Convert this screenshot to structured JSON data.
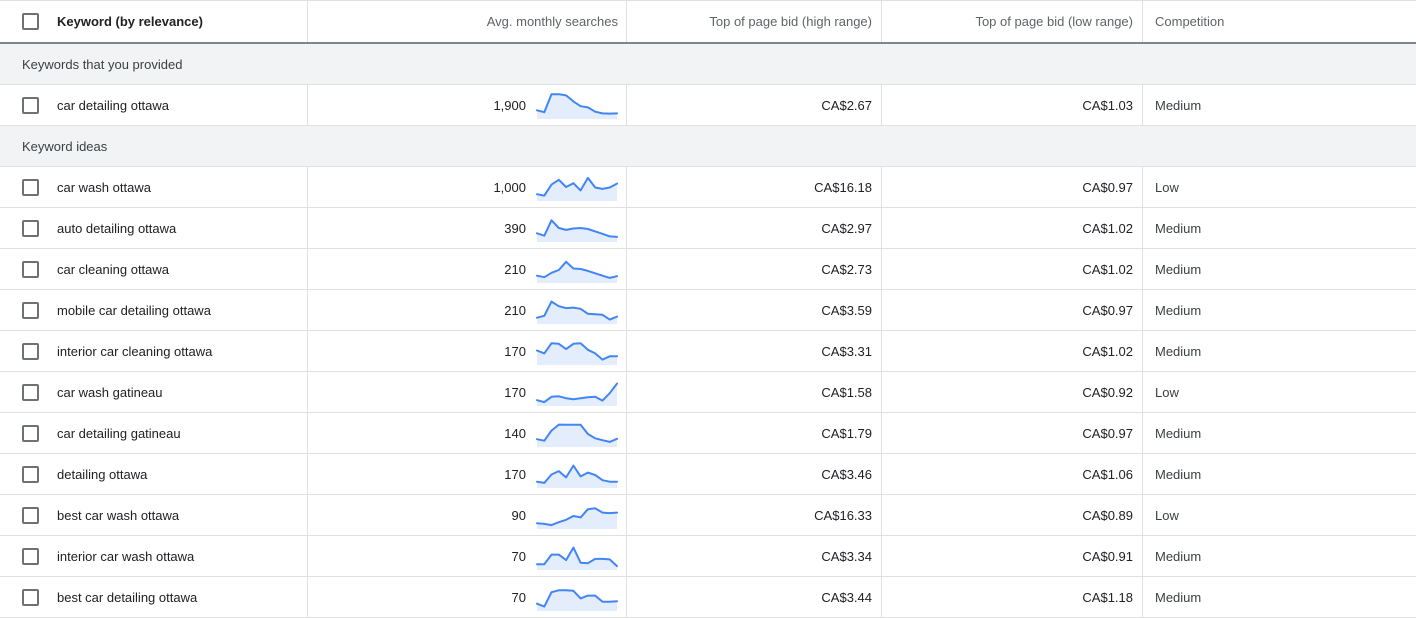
{
  "colors": {
    "sparkline_line": "#4285f4",
    "sparkline_fill": "#e4edfb",
    "section_bg": "#f1f3f4",
    "header_border": "#80868b",
    "row_border": "#e0e0e0"
  },
  "table": {
    "columns": [
      {
        "label": "Keyword (by relevance)"
      },
      {
        "label": "Avg. monthly searches"
      },
      {
        "label": "Top of page bid (high range)"
      },
      {
        "label": "Top of page bid (low range)"
      },
      {
        "label": "Competition"
      }
    ],
    "sections": [
      {
        "label": "Keywords that you provided",
        "rows": [
          {
            "keyword": "car detailing ottawa",
            "avg_monthly_searches": "1,900",
            "trend": [
              28,
              20,
              95,
              95,
              90,
              65,
              45,
              40,
              22,
              15,
              14,
              15
            ],
            "bid_high": "CA$2.67",
            "bid_low": "CA$1.03",
            "competition": "Medium"
          }
        ]
      },
      {
        "label": "Keyword ideas",
        "rows": [
          {
            "keyword": "car wash ottawa",
            "avg_monthly_searches": "1,000",
            "trend": [
              20,
              14,
              60,
              80,
              50,
              66,
              36,
              88,
              48,
              42,
              48,
              64
            ],
            "bid_high": "CA$16.18",
            "bid_low": "CA$0.97",
            "competition": "Low"
          },
          {
            "keyword": "auto detailing ottawa",
            "avg_monthly_searches": "390",
            "trend": [
              28,
              18,
              82,
              50,
              42,
              48,
              50,
              46,
              36,
              26,
              15,
              13
            ],
            "bid_high": "CA$2.97",
            "bid_low": "CA$1.02",
            "competition": "Medium"
          },
          {
            "keyword": "car cleaning ottawa",
            "avg_monthly_searches": "210",
            "trend": [
              22,
              16,
              34,
              46,
              80,
              52,
              50,
              42,
              32,
              22,
              13,
              20
            ],
            "bid_high": "CA$2.73",
            "bid_low": "CA$1.02",
            "competition": "Medium"
          },
          {
            "keyword": "mobile car detailing ottawa",
            "avg_monthly_searches": "210",
            "trend": [
              18,
              26,
              85,
              66,
              58,
              60,
              55,
              34,
              32,
              30,
              10,
              22
            ],
            "bid_high": "CA$3.59",
            "bid_low": "CA$0.97",
            "competition": "Medium"
          },
          {
            "keyword": "interior car cleaning ottawa",
            "avg_monthly_searches": "170",
            "trend": [
              52,
              40,
              82,
              80,
              58,
              80,
              82,
              55,
              40,
              14,
              28,
              28
            ],
            "bid_high": "CA$3.31",
            "bid_low": "CA$1.02",
            "competition": "Medium"
          },
          {
            "keyword": "car wash gatineau",
            "avg_monthly_searches": "170",
            "trend": [
              16,
              8,
              30,
              32,
              24,
              20,
              24,
              28,
              30,
              14,
              45,
              85
            ],
            "bid_high": "CA$1.58",
            "bid_low": "CA$0.92",
            "competition": "Low"
          },
          {
            "keyword": "car detailing gatineau",
            "avg_monthly_searches": "140",
            "trend": [
              24,
              18,
              60,
              85,
              84,
              84,
              84,
              46,
              28,
              20,
              13,
              26
            ],
            "bid_high": "CA$1.79",
            "bid_low": "CA$0.97",
            "competition": "Medium"
          },
          {
            "keyword": "detailing ottawa",
            "avg_monthly_searches": "170",
            "trend": [
              18,
              13,
              48,
              62,
              36,
              85,
              40,
              56,
              46,
              24,
              18,
              18
            ],
            "bid_high": "CA$3.46",
            "bid_low": "CA$1.06",
            "competition": "Medium"
          },
          {
            "keyword": "best car wash ottawa",
            "avg_monthly_searches": "90",
            "trend": [
              16,
              13,
              8,
              20,
              30,
              46,
              40,
              74,
              78,
              60,
              58,
              60
            ],
            "bid_high": "CA$16.33",
            "bid_low": "CA$0.89",
            "competition": "Low"
          },
          {
            "keyword": "interior car wash ottawa",
            "avg_monthly_searches": "70",
            "trend": [
              16,
              16,
              56,
              56,
              33,
              85,
              22,
              20,
              38,
              38,
              36,
              8
            ],
            "bid_high": "CA$3.34",
            "bid_low": "CA$0.91",
            "competition": "Medium"
          },
          {
            "keyword": "best car detailing ottawa",
            "avg_monthly_searches": "70",
            "trend": [
              22,
              10,
              70,
              78,
              78,
              76,
              44,
              56,
              56,
              30,
              30,
              32
            ],
            "bid_high": "CA$3.44",
            "bid_low": "CA$1.18",
            "competition": "Medium"
          }
        ]
      }
    ]
  }
}
